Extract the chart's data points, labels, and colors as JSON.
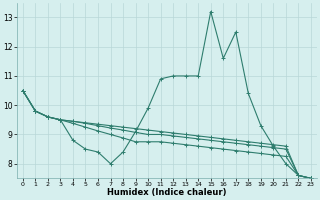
{
  "xlabel": "Humidex (Indice chaleur)",
  "x": [
    0,
    1,
    2,
    3,
    4,
    5,
    6,
    7,
    8,
    9,
    10,
    11,
    12,
    13,
    14,
    15,
    16,
    17,
    18,
    19,
    20,
    21,
    22,
    23
  ],
  "line1": [
    10.5,
    9.8,
    9.6,
    9.5,
    8.8,
    8.5,
    8.4,
    8.0,
    8.4,
    9.1,
    9.9,
    10.9,
    11.0,
    11.0,
    11.0,
    13.2,
    11.6,
    12.5,
    10.4,
    9.3,
    8.6,
    8.0,
    7.6,
    7.5
  ],
  "line2": [
    10.5,
    9.8,
    9.6,
    9.5,
    9.45,
    9.4,
    9.35,
    9.3,
    9.25,
    9.2,
    9.15,
    9.1,
    9.05,
    9.0,
    8.95,
    8.9,
    8.85,
    8.8,
    8.75,
    8.7,
    8.65,
    8.6,
    7.6,
    7.5
  ],
  "line3": [
    10.5,
    9.8,
    9.6,
    9.5,
    9.45,
    9.38,
    9.3,
    9.22,
    9.15,
    9.07,
    9.0,
    9.0,
    8.95,
    8.9,
    8.85,
    8.8,
    8.75,
    8.7,
    8.65,
    8.6,
    8.55,
    8.5,
    7.6,
    7.5
  ],
  "line4": [
    10.5,
    9.8,
    9.6,
    9.5,
    9.38,
    9.25,
    9.12,
    9.0,
    8.88,
    8.75,
    8.75,
    8.75,
    8.7,
    8.65,
    8.6,
    8.55,
    8.5,
    8.45,
    8.4,
    8.35,
    8.3,
    8.25,
    7.6,
    7.5
  ],
  "line_color": "#2e7d6e",
  "bg_color": "#d6efee",
  "grid_color": "#b8d8d8",
  "ylim": [
    7.5,
    13.5
  ],
  "xlim": [
    -0.5,
    23.5
  ],
  "yticks": [
    8,
    9,
    10,
    11,
    12,
    13
  ],
  "xticks": [
    0,
    1,
    2,
    3,
    4,
    5,
    6,
    7,
    8,
    9,
    10,
    11,
    12,
    13,
    14,
    15,
    16,
    17,
    18,
    19,
    20,
    21,
    22,
    23
  ]
}
